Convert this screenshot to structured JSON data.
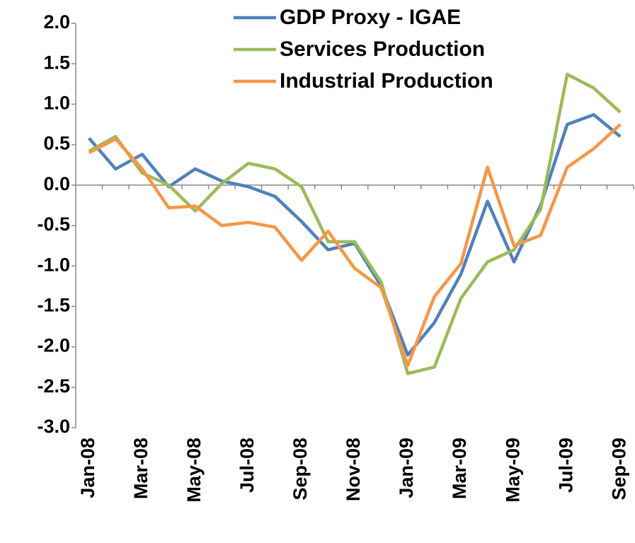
{
  "chart_data": {
    "type": "line",
    "categories": [
      "Jan-08",
      null,
      "Mar-08",
      null,
      "May-08",
      null,
      "Jul-08",
      null,
      "Sep-08",
      null,
      "Nov-08",
      null,
      "Jan-09",
      null,
      "Mar-09",
      null,
      "May-09",
      null,
      "Jul-09",
      null,
      "Sep-09"
    ],
    "series": [
      {
        "name": "GDP Proxy - IGAE",
        "color": "#4f81bd",
        "values": [
          0.58,
          0.2,
          0.38,
          -0.02,
          0.2,
          0.05,
          -0.02,
          -0.14,
          -0.45,
          -0.8,
          -0.72,
          -1.25,
          -2.1,
          -1.7,
          -1.1,
          -0.2,
          -0.95,
          -0.25,
          0.75,
          0.87,
          0.6
        ]
      },
      {
        "name": "Services Production",
        "color": "#9bbb59",
        "values": [
          0.42,
          0.6,
          0.15,
          0.0,
          -0.32,
          0.02,
          0.27,
          0.2,
          -0.02,
          -0.7,
          -0.7,
          -1.2,
          -2.33,
          -2.25,
          -1.4,
          -0.95,
          -0.8,
          -0.3,
          1.37,
          1.2,
          0.9
        ]
      },
      {
        "name": "Industrial Production",
        "color": "#f79646",
        "values": [
          0.4,
          0.57,
          0.2,
          -0.28,
          -0.26,
          -0.5,
          -0.46,
          -0.52,
          -0.93,
          -0.57,
          -1.03,
          -1.27,
          -2.23,
          -1.38,
          -0.97,
          0.22,
          -0.75,
          -0.62,
          0.22,
          0.45,
          0.75
        ]
      }
    ],
    "ylim": [
      -3,
      2
    ],
    "yticks": [
      {
        "value": 2,
        "label": "2.0"
      },
      1.5,
      {
        "value": 1,
        "label": "1.0"
      },
      0.5,
      {
        "value": 0,
        "label": "0.0"
      },
      -0.5,
      {
        "value": -1,
        "label": "-1.0"
      },
      -1.5,
      {
        "value": -2,
        "label": "-2.0"
      },
      -2.5,
      {
        "value": -3,
        "label": "-3.0"
      }
    ],
    "legend": "top-right"
  }
}
